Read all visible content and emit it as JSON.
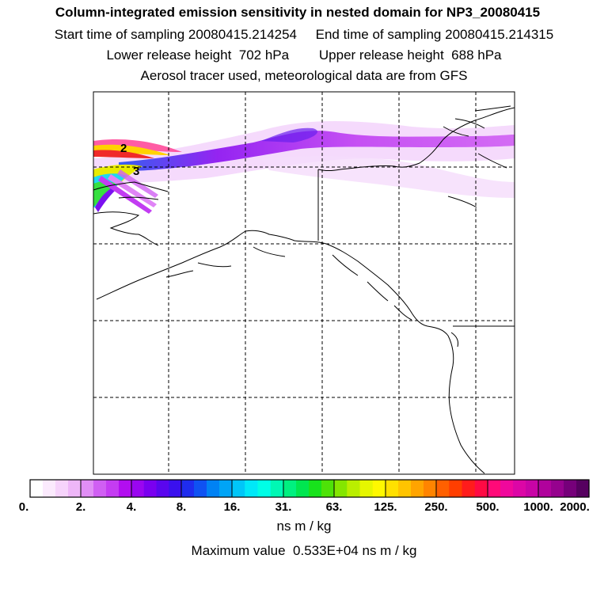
{
  "header": {
    "title": "Column-integrated emission sensitivity in nested domain for NP3_20080415",
    "start_label": "Start time of sampling",
    "start_value": "20080415.214254",
    "end_label": "End time of sampling",
    "end_value": "20080415.214315",
    "lower_label": "Lower release height",
    "lower_value": "702 hPa",
    "upper_label": "Upper release height",
    "upper_value": "688 hPa",
    "tracer_note": "Aerosol tracer used, meteorological data are from GFS"
  },
  "map": {
    "contour_labels": [
      "2",
      "3"
    ],
    "grid": "dashed",
    "plume_color_scale": "white-purple-blue-cyan-green-yellow-red-magenta"
  },
  "colorbar": {
    "tick_labels": [
      "0.",
      "2.",
      "4.",
      "8.",
      "16.",
      "31.",
      "63.",
      "125.",
      "250.",
      "500.",
      "1000.",
      "2000."
    ],
    "colors": [
      "#ffffff",
      "#fbeafd",
      "#f6d3fb",
      "#eeb6f8",
      "#e08ef5",
      "#d05ff3",
      "#c43cf2",
      "#b20ef0",
      "#9a06f0",
      "#7a00f0",
      "#5a06ee",
      "#3a10ee",
      "#1f2cee",
      "#0f52f2",
      "#0082f4",
      "#00a4f6",
      "#00c6f8",
      "#00e8f8",
      "#00fee6",
      "#00f8b4",
      "#00f080",
      "#00e650",
      "#18e21c",
      "#4ee208",
      "#84e600",
      "#baee00",
      "#e6f600",
      "#fff800",
      "#ffe000",
      "#ffc400",
      "#ffa400",
      "#ff8400",
      "#ff6000",
      "#ff3e00",
      "#ff1c1c",
      "#ff0a44",
      "#ff0a78",
      "#f0089c",
      "#dc06a6",
      "#c804a6",
      "#b0029c",
      "#96028e",
      "#76007a",
      "#560060"
    ],
    "units": "ns m / kg"
  },
  "footer": {
    "max_label": "Maximum value",
    "max_value": "0.533E+04",
    "max_units": "ns m / kg"
  }
}
